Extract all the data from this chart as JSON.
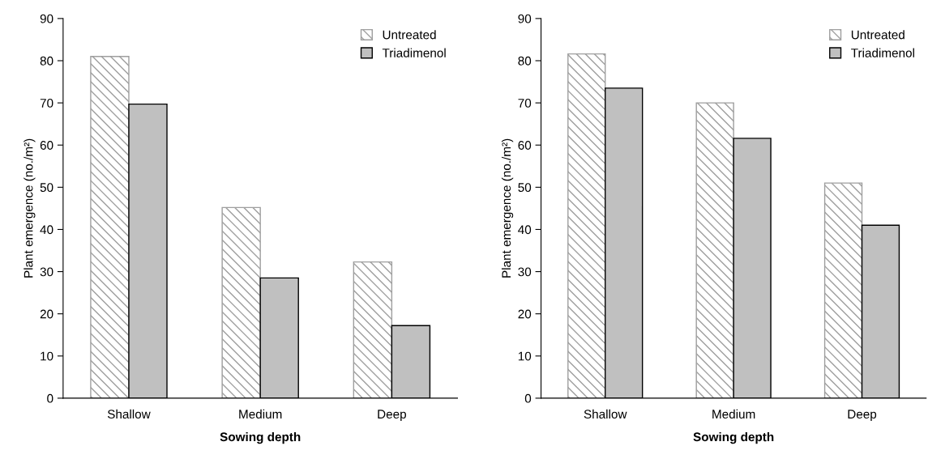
{
  "chart_data": [
    {
      "type": "bar",
      "categories": [
        "Shallow",
        "Medium",
        "Deep"
      ],
      "xlabel": "Sowing depth",
      "ylabel": "Plant emergence (no./m²)",
      "ylim": [
        0,
        90
      ],
      "yticks": [
        0,
        10,
        20,
        30,
        40,
        50,
        60,
        70,
        80,
        90
      ],
      "legend": "top right",
      "series": [
        {
          "name": "Untreated",
          "color": "#9e9e9e",
          "values": [
            81,
            45.2,
            32.3
          ]
        },
        {
          "name": "Triadimenol",
          "color": "#c0c0c0",
          "values": [
            69.7,
            28.5,
            17.2
          ]
        }
      ]
    },
    {
      "type": "bar",
      "categories": [
        "Shallow",
        "Medium",
        "Deep"
      ],
      "xlabel": "Sowing depth",
      "ylabel": "Plant emergence (no./m²)",
      "ylim": [
        0,
        90
      ],
      "yticks": [
        0,
        10,
        20,
        30,
        40,
        50,
        60,
        70,
        80,
        90
      ],
      "legend": "top right",
      "series": [
        {
          "name": "Untreated",
          "color": "#9e9e9e",
          "values": [
            81.6,
            70,
            51
          ]
        },
        {
          "name": "Triadimenol",
          "color": "#c0c0c0",
          "values": [
            73.5,
            61.6,
            41
          ]
        }
      ]
    }
  ]
}
